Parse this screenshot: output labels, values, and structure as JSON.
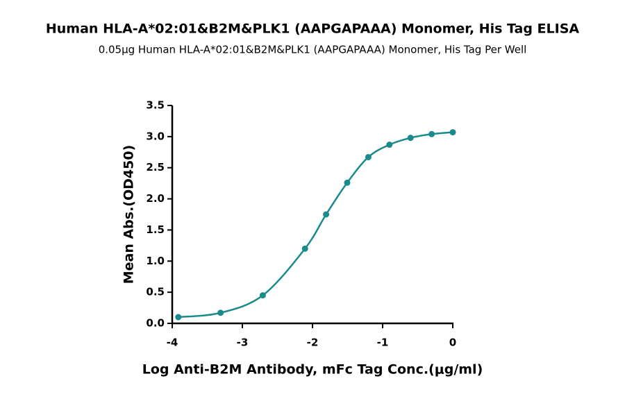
{
  "chart_data": {
    "type": "line",
    "title": "Human HLA-A*02:01&B2M&PLK1 (AAPGAPAAA) Monomer, His Tag ELISA",
    "subtitle": "0.05μg Human HLA-A*02:01&B2M&PLK1 (AAPGAPAAA) Monomer, His Tag Per Well",
    "x_label": "Log Anti-B2M Antibody, mFc Tag Conc.(μg/ml)",
    "y_label": "Mean Abs.(OD450)",
    "x": [
      -3.913,
      -3.311,
      -2.709,
      -2.107,
      -1.806,
      -1.505,
      -1.204,
      -0.903,
      -0.602,
      -0.301,
      0
    ],
    "series": [
      {
        "color": "#1b8a8a",
        "values": [
          0.1,
          0.17,
          0.45,
          1.2,
          1.75,
          2.26,
          2.67,
          2.87,
          2.98,
          3.04,
          3.07
        ]
      }
    ],
    "xlim": [
      -4,
      0
    ],
    "xticks": [
      -4,
      -3,
      -2,
      -1,
      0
    ],
    "ylim": [
      0,
      3.5
    ],
    "yticks": [
      {
        "value": 0,
        "label": "0.0"
      },
      0.5,
      {
        "value": 1,
        "label": "1.0"
      },
      1.5,
      {
        "value": 2,
        "label": "2.0"
      },
      2.5,
      {
        "value": 3,
        "label": "3.0"
      },
      3.5
    ]
  }
}
